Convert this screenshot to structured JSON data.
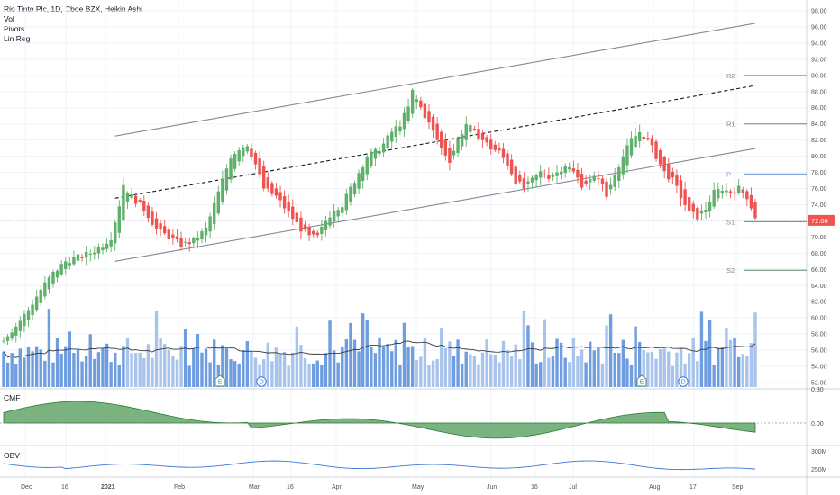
{
  "legend": {
    "title": "Rio Tinto Plc, 1D, Cboe BZX, Heikin Ashi",
    "line2": "Vol",
    "line3": "Pivots",
    "line4": "Lin Reg"
  },
  "cmf_label": "CMF",
  "obv_label": "OBV",
  "colors": {
    "up": "#26a69a",
    "up_fill": "#5fb06a",
    "down": "#ef5350",
    "vol_up": "#a9c4ec",
    "vol_down": "#6f9ee0",
    "ma": "#3a3a3a",
    "channel": "#868993",
    "pivot": "#5d8f6a",
    "pivot_p": "#6f93c8",
    "cmf_fill": "#63a46a",
    "obv": "#3a78d6",
    "price_tag": "#ef5350"
  },
  "price_axis": {
    "ticks": [
      "98.00",
      "96.00",
      "94.00",
      "92.00",
      "90.00",
      "88.00",
      "86.00",
      "84.00",
      "82.00",
      "80.00",
      "78.00",
      "76.00",
      "74.00",
      "72.00",
      "70.00",
      "68.00",
      "66.00",
      "64.00",
      "62.00",
      "60.00",
      "58.00",
      "56.00",
      "54.00",
      "52.00"
    ],
    "last_price": "72.06"
  },
  "pivots": [
    {
      "name": "R2",
      "value": 90.0
    },
    {
      "name": "R1",
      "value": 84.0
    },
    {
      "name": "P",
      "value": 77.8
    },
    {
      "name": "S1",
      "value": 71.9
    },
    {
      "name": "S2",
      "value": 65.9
    }
  ],
  "events": [
    "E",
    "D",
    "E",
    "D"
  ],
  "cmf_axis": [
    "0.30",
    "0.00"
  ],
  "obv_axis": [
    "300M",
    "250M"
  ],
  "time_axis": [
    "Dec",
    "16",
    "2021",
    "Feb",
    "Mar",
    "16",
    "Apr",
    "May",
    "Jun",
    "16",
    "Jul",
    "Aug",
    "17",
    "Sep"
  ],
  "chart_data": {
    "type": "candlestick",
    "title": "Rio Tinto Plc, 1D, Cboe BZX, Heikin Ashi",
    "x_range": [
      "Dec 2020",
      "Sep 2021"
    ],
    "ylim": [
      52,
      98
    ],
    "price_path": [
      [
        0,
        57.5
      ],
      [
        3,
        59
      ],
      [
        6,
        61
      ],
      [
        9,
        63.5
      ],
      [
        12,
        65.5
      ],
      [
        15,
        67
      ],
      [
        18,
        67.5
      ],
      [
        21,
        68
      ],
      [
        24,
        69
      ],
      [
        26,
        70
      ],
      [
        28,
        74
      ],
      [
        29,
        76.5
      ],
      [
        31,
        75
      ],
      [
        34,
        73.5
      ],
      [
        37,
        71
      ],
      [
        40,
        70
      ],
      [
        43,
        69
      ],
      [
        46,
        69.5
      ],
      [
        49,
        71
      ],
      [
        51,
        74
      ],
      [
        53,
        77
      ],
      [
        55,
        80
      ],
      [
        57,
        81
      ],
      [
        59,
        81.5
      ],
      [
        61,
        79
      ],
      [
        63,
        76
      ],
      [
        66,
        75
      ],
      [
        69,
        73
      ],
      [
        72,
        71
      ],
      [
        74,
        70
      ],
      [
        76,
        70
      ],
      [
        78,
        72
      ],
      [
        80,
        73.5
      ],
      [
        82,
        74
      ],
      [
        84,
        76
      ],
      [
        86,
        78
      ],
      [
        88,
        80
      ],
      [
        90,
        80.5
      ],
      [
        92,
        81.5
      ],
      [
        94,
        83
      ],
      [
        96,
        84
      ],
      [
        98,
        86
      ],
      [
        99,
        88
      ],
      [
        100,
        87
      ],
      [
        102,
        85
      ],
      [
        104,
        83
      ],
      [
        106,
        81
      ],
      [
        108,
        79.5
      ],
      [
        110,
        82
      ],
      [
        112,
        84
      ],
      [
        114,
        83
      ],
      [
        116,
        82
      ],
      [
        118,
        81
      ],
      [
        120,
        80.5
      ],
      [
        122,
        79
      ],
      [
        124,
        77
      ],
      [
        126,
        76
      ],
      [
        128,
        77
      ],
      [
        130,
        78
      ],
      [
        132,
        77.5
      ],
      [
        134,
        78
      ],
      [
        136,
        79
      ],
      [
        138,
        78
      ],
      [
        140,
        76.5
      ],
      [
        142,
        77
      ],
      [
        144,
        77.5
      ],
      [
        146,
        75
      ],
      [
        148,
        78
      ],
      [
        150,
        80
      ],
      [
        152,
        82
      ],
      [
        154,
        83
      ],
      [
        156,
        82
      ],
      [
        158,
        80
      ],
      [
        160,
        78
      ],
      [
        162,
        77
      ],
      [
        164,
        75
      ],
      [
        166,
        73
      ],
      [
        168,
        72.5
      ],
      [
        170,
        73.5
      ],
      [
        172,
        75.5
      ],
      [
        174,
        76
      ],
      [
        176,
        75.5
      ],
      [
        178,
        76
      ],
      [
        180,
        75
      ],
      [
        182,
        72.5
      ]
    ],
    "channel": {
      "slope_per_day": 0.09,
      "start_day": 27,
      "end_day": 182,
      "upper_start": 82.5,
      "mid_start": 74.8,
      "lower_start": 67.0
    },
    "volume_ma": "moving average line over volume bars",
    "pivots": {
      "R2": 90.0,
      "R1": 84.0,
      "P": 77.8,
      "S1": 71.9,
      "S2": 65.9
    },
    "last_price": 72.06
  }
}
